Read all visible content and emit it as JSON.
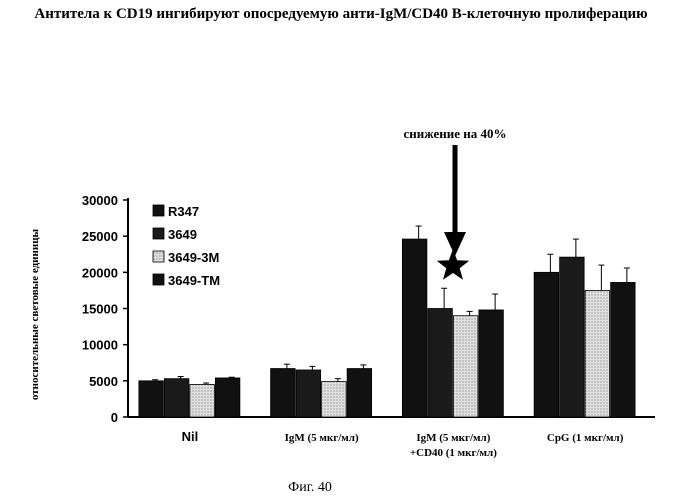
{
  "title": "Антитела к CD19 ингибируют опосредуемую анти-IgM/CD40 В-клеточную пролиферацию",
  "caption": "Фиг. 40",
  "chart_data": {
    "type": "bar",
    "ylabel": "относительные световые единицы",
    "xlabel": "",
    "ylim": [
      0,
      30000
    ],
    "yticks": [
      "0",
      "5000",
      "10000",
      "15000",
      "20000",
      "25000",
      "30000"
    ],
    "categories": [
      "Nil",
      "IgM (5 мкг/мл)",
      "IgM (5 мкг/мл)\n+CD40 (1 мкг/мл)",
      "CpG (1 мкг/мл)"
    ],
    "legend_position": "top-left",
    "series": [
      {
        "name": "R347",
        "color": "#111111",
        "values": [
          5000,
          6700,
          24600,
          20000
        ],
        "errors": [
          150,
          600,
          1800,
          2500
        ]
      },
      {
        "name": "3649",
        "color": "#1a1a1a",
        "values": [
          5300,
          6500,
          15000,
          22100
        ],
        "errors": [
          300,
          500,
          2800,
          2500
        ]
      },
      {
        "name": "3649-3M",
        "color": "#cfcfcf",
        "values": [
          4500,
          4900,
          14000,
          17500
        ],
        "errors": [
          200,
          400,
          600,
          3500
        ]
      },
      {
        "name": "3649-TM",
        "color": "#111111",
        "values": [
          5400,
          6700,
          14800,
          18600
        ],
        "errors": [
          100,
          500,
          2200,
          2000
        ]
      }
    ],
    "annotation": "снижение на 40%",
    "grid": false
  }
}
